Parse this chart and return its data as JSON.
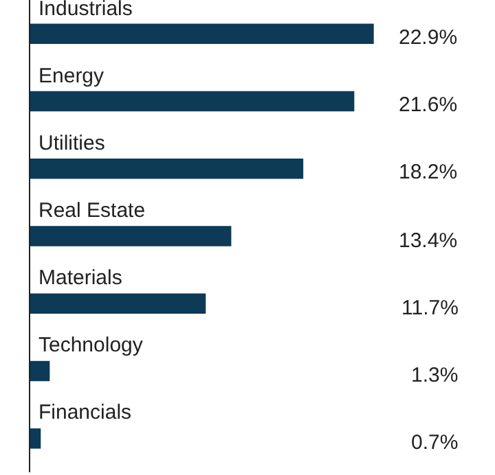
{
  "chart_data": {
    "type": "bar",
    "orientation": "horizontal",
    "categories": [
      "Industrials",
      "Energy",
      "Utilities",
      "Real Estate",
      "Materials",
      "Technology",
      "Financials"
    ],
    "values": [
      22.9,
      21.6,
      18.2,
      13.4,
      11.7,
      1.3,
      0.7
    ],
    "value_labels": [
      "22.9%",
      "21.6%",
      "18.2%",
      "13.4%",
      "11.7%",
      "1.3%",
      "0.7%"
    ],
    "color": "#0d3a56",
    "tick_labels": "y"
  }
}
